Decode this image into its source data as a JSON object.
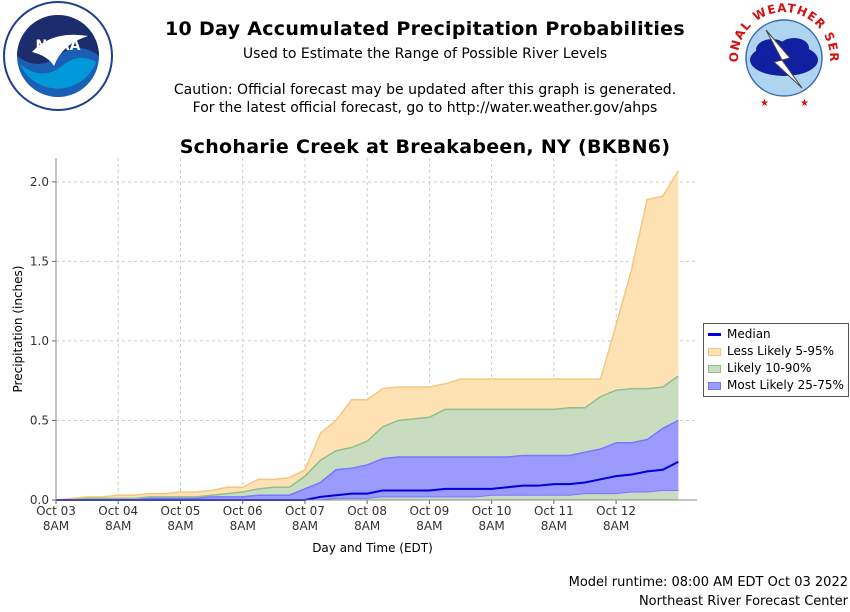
{
  "header": {
    "title": "10 Day Accumulated Precipitation Probabilities",
    "subtitle": "Used to Estimate the Range of Possible River Levels",
    "caution_line1": "Caution: Official forecast may be updated after this graph is generated.",
    "caution_line2": "For the latest official forecast, go to http://water.weather.gov/ahps"
  },
  "logos": {
    "noaa_icon": "noaa-logo",
    "nws_icon": "nws-logo",
    "noaa_text": "NOAA",
    "noaa_ring_text": "NATIONAL OCEANIC AND ATMOSPHERIC ADMINISTRATION · U.S. DEPARTMENT OF COMMERCE",
    "nws_ring_text": "NATIONAL WEATHER SERVICE"
  },
  "footer": {
    "runtime": "Model runtime: 08:00 AM EDT Oct 03 2022",
    "center": "Northeast River Forecast Center"
  },
  "chart_data": {
    "type": "area",
    "title": "Schoharie Creek at Breakabeen, NY (BKBN6)",
    "xlabel": "Day and Time (EDT)",
    "ylabel": "Precipitation (inches)",
    "ylim": [
      0,
      2.15
    ],
    "yticks": [
      "0.0",
      "0.5",
      "1.0",
      "1.5",
      "2.0"
    ],
    "ytick_values": [
      0,
      0.5,
      1.0,
      1.5,
      2.0
    ],
    "xticks": [
      {
        "day": "Oct 03",
        "time": "8AM"
      },
      {
        "day": "Oct 04",
        "time": "8AM"
      },
      {
        "day": "Oct 05",
        "time": "8AM"
      },
      {
        "day": "Oct 06",
        "time": "8AM"
      },
      {
        "day": "Oct 07",
        "time": "8AM"
      },
      {
        "day": "Oct 08",
        "time": "8AM"
      },
      {
        "day": "Oct 09",
        "time": "8AM"
      },
      {
        "day": "Oct 10",
        "time": "8AM"
      },
      {
        "day": "Oct 11",
        "time": "8AM"
      },
      {
        "day": "Oct 12",
        "time": "8AM"
      }
    ],
    "grid": true,
    "legend_position": "right",
    "x": [
      0,
      0.25,
      0.5,
      0.75,
      1,
      1.25,
      1.5,
      1.75,
      2,
      2.25,
      2.5,
      2.75,
      3,
      3.25,
      3.5,
      3.75,
      4,
      4.25,
      4.5,
      4.75,
      5,
      5.25,
      5.5,
      5.75,
      6,
      6.25,
      6.5,
      6.75,
      7,
      7.25,
      7.5,
      7.75,
      8,
      8.25,
      8.5,
      8.75,
      9,
      9.25,
      9.5,
      9.75,
      10
    ],
    "series": [
      {
        "name": "Less Likely 5-95%",
        "color": "#f5c77e",
        "fill": "#ffe2b3",
        "lower": [
          0,
          0,
          0,
          0,
          0,
          0,
          0,
          0,
          0,
          0,
          0,
          0,
          0,
          0,
          0,
          0,
          0,
          0,
          0,
          0,
          0,
          0,
          0,
          0,
          0,
          0,
          0,
          0,
          0,
          0,
          0,
          0,
          0,
          0,
          0,
          0,
          0,
          0,
          0,
          0,
          0
        ],
        "upper": [
          0,
          0.01,
          0.02,
          0.02,
          0.03,
          0.03,
          0.04,
          0.04,
          0.05,
          0.05,
          0.06,
          0.08,
          0.08,
          0.13,
          0.13,
          0.14,
          0.19,
          0.42,
          0.5,
          0.63,
          0.63,
          0.7,
          0.71,
          0.71,
          0.71,
          0.73,
          0.76,
          0.76,
          0.76,
          0.76,
          0.76,
          0.76,
          0.76,
          0.76,
          0.76,
          0.76,
          1.1,
          1.45,
          1.89,
          1.91,
          2.07
        ]
      },
      {
        "name": "Likely 10-90%",
        "color": "#8fbf8f",
        "fill": "#c8dcbf",
        "lower": [
          0,
          0,
          0,
          0,
          0,
          0,
          0,
          0,
          0,
          0,
          0,
          0,
          0,
          0,
          0,
          0,
          0,
          0,
          0,
          0,
          0,
          0,
          0,
          0,
          0,
          0,
          0,
          0,
          0,
          0,
          0,
          0,
          0,
          0,
          0,
          0,
          0,
          0,
          0,
          0,
          0
        ],
        "upper": [
          0,
          0,
          0.01,
          0.01,
          0.01,
          0.01,
          0.02,
          0.02,
          0.02,
          0.02,
          0.03,
          0.04,
          0.05,
          0.07,
          0.08,
          0.08,
          0.15,
          0.25,
          0.31,
          0.33,
          0.37,
          0.46,
          0.5,
          0.51,
          0.52,
          0.57,
          0.57,
          0.57,
          0.57,
          0.57,
          0.57,
          0.57,
          0.57,
          0.58,
          0.58,
          0.65,
          0.69,
          0.7,
          0.7,
          0.71,
          0.78
        ]
      },
      {
        "name": "Most Likely 25-75%",
        "color": "#7777ff",
        "fill": "#9b9bff",
        "lower": [
          0,
          0,
          0,
          0,
          0,
          0,
          0,
          0,
          0,
          0,
          0,
          0,
          0,
          0,
          0,
          0,
          0,
          0,
          0.01,
          0.01,
          0.01,
          0.02,
          0.02,
          0.02,
          0.02,
          0.02,
          0.02,
          0.02,
          0.03,
          0.03,
          0.03,
          0.03,
          0.03,
          0.03,
          0.04,
          0.04,
          0.04,
          0.05,
          0.05,
          0.06,
          0.06
        ],
        "upper": [
          0,
          0,
          0,
          0,
          0,
          0,
          0.01,
          0.01,
          0.01,
          0.01,
          0.02,
          0.02,
          0.02,
          0.03,
          0.03,
          0.03,
          0.07,
          0.11,
          0.19,
          0.2,
          0.22,
          0.26,
          0.27,
          0.27,
          0.27,
          0.27,
          0.27,
          0.27,
          0.27,
          0.27,
          0.28,
          0.28,
          0.28,
          0.28,
          0.3,
          0.32,
          0.36,
          0.36,
          0.38,
          0.45,
          0.5
        ]
      },
      {
        "name": "Median",
        "color": "#0000dd",
        "values": [
          0,
          0,
          0,
          0,
          0,
          0,
          0,
          0,
          0,
          0,
          0,
          0,
          0,
          0,
          0,
          0,
          0,
          0.02,
          0.03,
          0.04,
          0.04,
          0.06,
          0.06,
          0.06,
          0.06,
          0.07,
          0.07,
          0.07,
          0.07,
          0.08,
          0.09,
          0.09,
          0.1,
          0.1,
          0.11,
          0.13,
          0.15,
          0.16,
          0.18,
          0.19,
          0.24
        ]
      }
    ]
  }
}
